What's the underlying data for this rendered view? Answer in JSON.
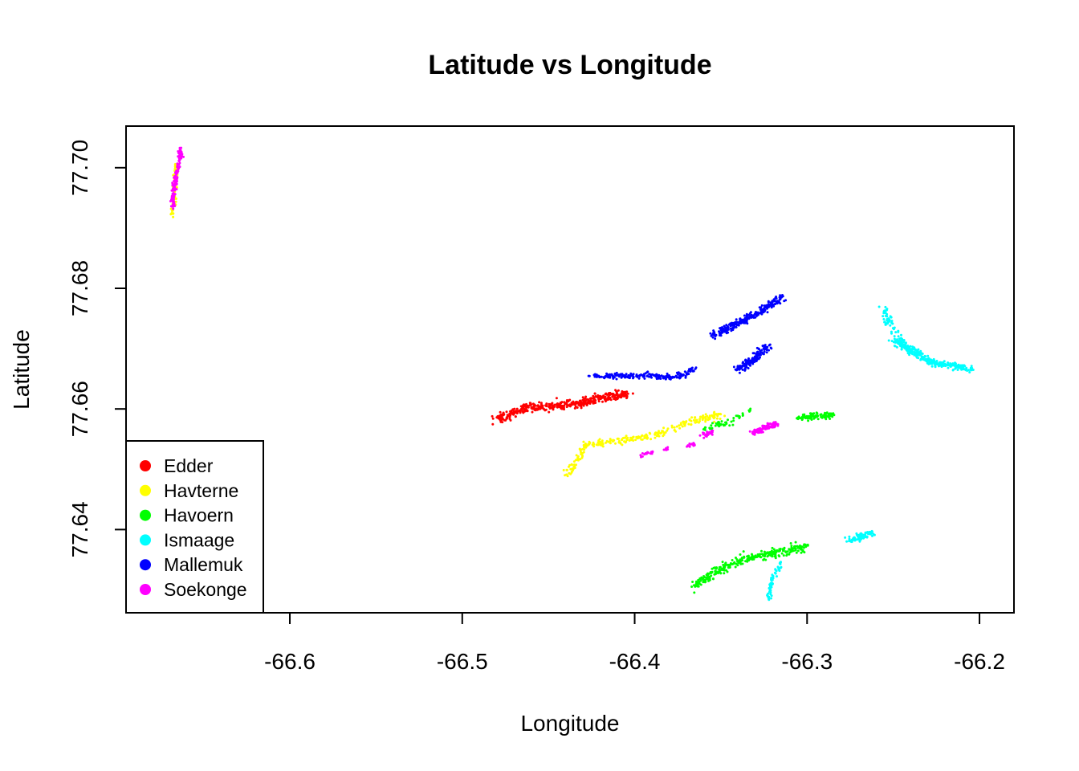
{
  "chart_data": {
    "type": "scatter",
    "title": "Latitude vs Longitude",
    "xlabel": "Longitude",
    "ylabel": "Latitude",
    "xlim": [
      -66.695,
      -66.18
    ],
    "ylim": [
      77.6262,
      77.7069
    ],
    "x_ticks": [
      {
        "value": -66.6,
        "label": "-66.6"
      },
      {
        "value": -66.5,
        "label": "-66.5"
      },
      {
        "value": -66.4,
        "label": "-66.4"
      },
      {
        "value": -66.3,
        "label": "-66.3"
      },
      {
        "value": -66.2,
        "label": "-66.2"
      }
    ],
    "y_ticks": [
      {
        "value": 77.64,
        "label": "77.64"
      },
      {
        "value": 77.66,
        "label": "77.66"
      },
      {
        "value": 77.68,
        "label": "77.68"
      },
      {
        "value": 77.7,
        "label": "77.70"
      }
    ],
    "grid": false,
    "legend_position": "bottom-left",
    "series": [
      {
        "name": "Edder",
        "color": "#FF0000",
        "clusters": [
          {
            "path": [
              [
                -66.48,
                77.6583
              ],
              [
                -66.462,
                77.6603
              ],
              [
                -66.44,
                77.6605
              ],
              [
                -66.42,
                77.6618
              ],
              [
                -66.404,
                77.6625
              ]
            ],
            "count": 420,
            "spread": [
              0.004,
              0.0007
            ]
          }
        ]
      },
      {
        "name": "Havterne",
        "color": "#FFFF00",
        "clusters": [
          {
            "path": [
              [
                -66.668,
                77.6918
              ],
              [
                -66.667,
                77.6962
              ],
              [
                -66.666,
                77.7005
              ]
            ],
            "count": 60,
            "spread": [
              0.0012,
              0.0008
            ]
          },
          {
            "path": [
              [
                -66.44,
                77.6488
              ],
              [
                -66.428,
                77.654
              ],
              [
                -66.41,
                77.6548
              ],
              [
                -66.39,
                77.6555
              ],
              [
                -66.372,
                77.6575
              ],
              [
                -66.35,
                77.6592
              ]
            ],
            "count": 260,
            "spread": [
              0.003,
              0.0006
            ]
          }
        ]
      },
      {
        "name": "Havoern",
        "color": "#00FF00",
        "clusters": [
          {
            "path": [
              [
                -66.365,
                77.6307
              ],
              [
                -66.35,
                77.6335
              ],
              [
                -66.335,
                77.6352
              ],
              [
                -66.318,
                77.6362
              ],
              [
                -66.3,
                77.6372
              ]
            ],
            "count": 320,
            "spread": [
              0.003,
              0.0007
            ]
          },
          {
            "path": [
              [
                -66.36,
                77.6565
              ],
              [
                -66.345,
                77.6578
              ],
              [
                -66.333,
                77.6598
              ]
            ],
            "count": 50,
            "spread": [
              0.002,
              0.0005
            ]
          },
          {
            "path": [
              [
                -66.305,
                77.6585
              ],
              [
                -66.295,
                77.6588
              ],
              [
                -66.285,
                77.659
              ]
            ],
            "count": 110,
            "spread": [
              0.003,
              0.0005
            ]
          }
        ]
      },
      {
        "name": "Ismaage",
        "color": "#00FFFF",
        "clusters": [
          {
            "path": [
              [
                -66.255,
                77.6765
              ],
              [
                -66.252,
                77.674
              ],
              [
                -66.245,
                77.6712
              ]
            ],
            "count": 60,
            "spread": [
              0.0025,
              0.0006
            ]
          },
          {
            "path": [
              [
                -66.25,
                77.6715
              ],
              [
                -66.235,
                77.669
              ],
              [
                -66.225,
                77.6675
              ],
              [
                -66.205,
                77.6668
              ]
            ],
            "count": 280,
            "spread": [
              0.003,
              0.0006
            ]
          },
          {
            "path": [
              [
                -66.275,
                77.6382
              ],
              [
                -66.27,
                77.6388
              ],
              [
                -66.262,
                77.6395
              ]
            ],
            "count": 90,
            "spread": [
              0.003,
              0.0005
            ]
          },
          {
            "path": [
              [
                -66.322,
                77.6285
              ],
              [
                -66.321,
                77.6315
              ],
              [
                -66.315,
                77.6345
              ]
            ],
            "count": 60,
            "spread": [
              0.0012,
              0.0006
            ]
          }
        ]
      },
      {
        "name": "Mallemuk",
        "color": "#0000FF",
        "clusters": [
          {
            "path": [
              [
                -66.355,
                77.672
              ],
              [
                -66.345,
                77.6735
              ],
              [
                -66.335,
                77.675
              ],
              [
                -66.325,
                77.6765
              ],
              [
                -66.315,
                77.6785
              ]
            ],
            "count": 260,
            "spread": [
              0.0025,
              0.0006
            ]
          },
          {
            "path": [
              [
                -66.34,
                77.6665
              ],
              [
                -66.33,
                77.6685
              ],
              [
                -66.322,
                77.6705
              ]
            ],
            "count": 140,
            "spread": [
              0.0025,
              0.0006
            ]
          },
          {
            "path": [
              [
                -66.425,
                77.6655
              ],
              [
                -66.405,
                77.6655
              ],
              [
                -66.39,
                77.6655
              ],
              [
                -66.375,
                77.6652
              ],
              [
                -66.365,
                77.6668
              ]
            ],
            "count": 200,
            "spread": [
              0.003,
              0.0004
            ]
          }
        ]
      },
      {
        "name": "Soekonge",
        "color": "#FF00FF",
        "clusters": [
          {
            "path": [
              [
                -66.668,
                77.6935
              ],
              [
                -66.667,
                77.697
              ],
              [
                -66.665,
                77.7
              ],
              [
                -66.663,
                77.703
              ]
            ],
            "count": 150,
            "spread": [
              0.0012,
              0.0007
            ]
          },
          {
            "path": [
              [
                -66.332,
                77.656
              ],
              [
                -66.325,
                77.6568
              ],
              [
                -66.318,
                77.6575
              ]
            ],
            "count": 110,
            "spread": [
              0.002,
              0.0005
            ]
          },
          {
            "path": [
              [
                -66.36,
                77.6555
              ],
              [
                -66.355,
                77.6562
              ]
            ],
            "count": 30,
            "spread": [
              0.0015,
              0.0004
            ]
          },
          {
            "path": [
              [
                -66.37,
                77.6538
              ],
              [
                -66.365,
                77.6542
              ]
            ],
            "count": 15,
            "spread": [
              0.001,
              0.0003
            ]
          },
          {
            "path": [
              [
                -66.397,
                77.6522
              ],
              [
                -66.39,
                77.6528
              ]
            ],
            "count": 15,
            "spread": [
              0.0012,
              0.0003
            ]
          },
          {
            "path": [
              [
                -66.382,
                77.6532
              ],
              [
                -66.38,
                77.6534
              ]
            ],
            "count": 8,
            "spread": [
              0.0008,
              0.0002
            ]
          }
        ]
      }
    ]
  }
}
